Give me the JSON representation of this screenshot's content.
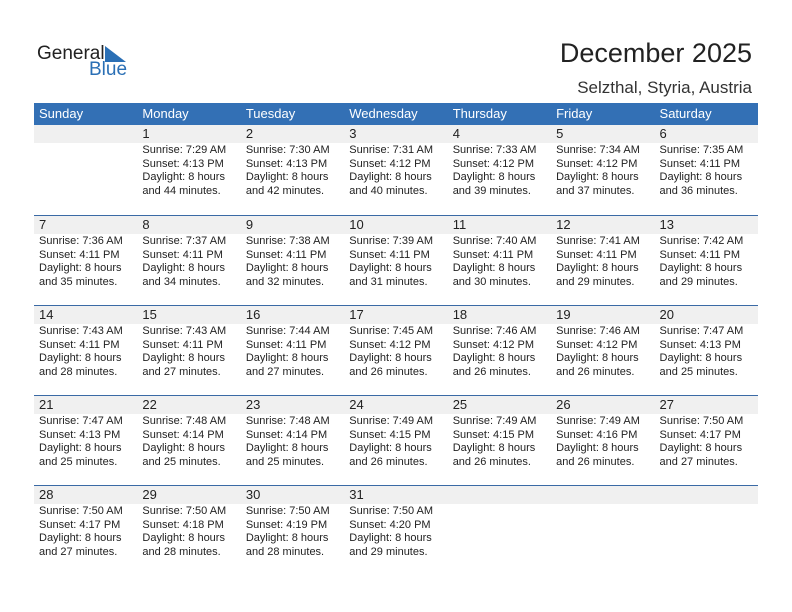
{
  "logo": {
    "line1": "General",
    "line2": "Blue"
  },
  "title": "December 2025",
  "location": "Selzthal, Styria, Austria",
  "colors": {
    "header": "#3370b5",
    "accent": "#2a6fb5"
  },
  "weekdays": [
    "Sunday",
    "Monday",
    "Tuesday",
    "Wednesday",
    "Thursday",
    "Friday",
    "Saturday"
  ],
  "weeks": [
    [
      null,
      {
        "day": "1",
        "sunrise": "Sunrise: 7:29 AM",
        "sunset": "Sunset: 4:13 PM",
        "daylight1": "Daylight: 8 hours",
        "daylight2": "and 44 minutes."
      },
      {
        "day": "2",
        "sunrise": "Sunrise: 7:30 AM",
        "sunset": "Sunset: 4:13 PM",
        "daylight1": "Daylight: 8 hours",
        "daylight2": "and 42 minutes."
      },
      {
        "day": "3",
        "sunrise": "Sunrise: 7:31 AM",
        "sunset": "Sunset: 4:12 PM",
        "daylight1": "Daylight: 8 hours",
        "daylight2": "and 40 minutes."
      },
      {
        "day": "4",
        "sunrise": "Sunrise: 7:33 AM",
        "sunset": "Sunset: 4:12 PM",
        "daylight1": "Daylight: 8 hours",
        "daylight2": "and 39 minutes."
      },
      {
        "day": "5",
        "sunrise": "Sunrise: 7:34 AM",
        "sunset": "Sunset: 4:12 PM",
        "daylight1": "Daylight: 8 hours",
        "daylight2": "and 37 minutes."
      },
      {
        "day": "6",
        "sunrise": "Sunrise: 7:35 AM",
        "sunset": "Sunset: 4:11 PM",
        "daylight1": "Daylight: 8 hours",
        "daylight2": "and 36 minutes."
      }
    ],
    [
      {
        "day": "7",
        "sunrise": "Sunrise: 7:36 AM",
        "sunset": "Sunset: 4:11 PM",
        "daylight1": "Daylight: 8 hours",
        "daylight2": "and 35 minutes."
      },
      {
        "day": "8",
        "sunrise": "Sunrise: 7:37 AM",
        "sunset": "Sunset: 4:11 PM",
        "daylight1": "Daylight: 8 hours",
        "daylight2": "and 34 minutes."
      },
      {
        "day": "9",
        "sunrise": "Sunrise: 7:38 AM",
        "sunset": "Sunset: 4:11 PM",
        "daylight1": "Daylight: 8 hours",
        "daylight2": "and 32 minutes."
      },
      {
        "day": "10",
        "sunrise": "Sunrise: 7:39 AM",
        "sunset": "Sunset: 4:11 PM",
        "daylight1": "Daylight: 8 hours",
        "daylight2": "and 31 minutes."
      },
      {
        "day": "11",
        "sunrise": "Sunrise: 7:40 AM",
        "sunset": "Sunset: 4:11 PM",
        "daylight1": "Daylight: 8 hours",
        "daylight2": "and 30 minutes."
      },
      {
        "day": "12",
        "sunrise": "Sunrise: 7:41 AM",
        "sunset": "Sunset: 4:11 PM",
        "daylight1": "Daylight: 8 hours",
        "daylight2": "and 29 minutes."
      },
      {
        "day": "13",
        "sunrise": "Sunrise: 7:42 AM",
        "sunset": "Sunset: 4:11 PM",
        "daylight1": "Daylight: 8 hours",
        "daylight2": "and 29 minutes."
      }
    ],
    [
      {
        "day": "14",
        "sunrise": "Sunrise: 7:43 AM",
        "sunset": "Sunset: 4:11 PM",
        "daylight1": "Daylight: 8 hours",
        "daylight2": "and 28 minutes."
      },
      {
        "day": "15",
        "sunrise": "Sunrise: 7:43 AM",
        "sunset": "Sunset: 4:11 PM",
        "daylight1": "Daylight: 8 hours",
        "daylight2": "and 27 minutes."
      },
      {
        "day": "16",
        "sunrise": "Sunrise: 7:44 AM",
        "sunset": "Sunset: 4:11 PM",
        "daylight1": "Daylight: 8 hours",
        "daylight2": "and 27 minutes."
      },
      {
        "day": "17",
        "sunrise": "Sunrise: 7:45 AM",
        "sunset": "Sunset: 4:12 PM",
        "daylight1": "Daylight: 8 hours",
        "daylight2": "and 26 minutes."
      },
      {
        "day": "18",
        "sunrise": "Sunrise: 7:46 AM",
        "sunset": "Sunset: 4:12 PM",
        "daylight1": "Daylight: 8 hours",
        "daylight2": "and 26 minutes."
      },
      {
        "day": "19",
        "sunrise": "Sunrise: 7:46 AM",
        "sunset": "Sunset: 4:12 PM",
        "daylight1": "Daylight: 8 hours",
        "daylight2": "and 26 minutes."
      },
      {
        "day": "20",
        "sunrise": "Sunrise: 7:47 AM",
        "sunset": "Sunset: 4:13 PM",
        "daylight1": "Daylight: 8 hours",
        "daylight2": "and 25 minutes."
      }
    ],
    [
      {
        "day": "21",
        "sunrise": "Sunrise: 7:47 AM",
        "sunset": "Sunset: 4:13 PM",
        "daylight1": "Daylight: 8 hours",
        "daylight2": "and 25 minutes."
      },
      {
        "day": "22",
        "sunrise": "Sunrise: 7:48 AM",
        "sunset": "Sunset: 4:14 PM",
        "daylight1": "Daylight: 8 hours",
        "daylight2": "and 25 minutes."
      },
      {
        "day": "23",
        "sunrise": "Sunrise: 7:48 AM",
        "sunset": "Sunset: 4:14 PM",
        "daylight1": "Daylight: 8 hours",
        "daylight2": "and 25 minutes."
      },
      {
        "day": "24",
        "sunrise": "Sunrise: 7:49 AM",
        "sunset": "Sunset: 4:15 PM",
        "daylight1": "Daylight: 8 hours",
        "daylight2": "and 26 minutes."
      },
      {
        "day": "25",
        "sunrise": "Sunrise: 7:49 AM",
        "sunset": "Sunset: 4:15 PM",
        "daylight1": "Daylight: 8 hours",
        "daylight2": "and 26 minutes."
      },
      {
        "day": "26",
        "sunrise": "Sunrise: 7:49 AM",
        "sunset": "Sunset: 4:16 PM",
        "daylight1": "Daylight: 8 hours",
        "daylight2": "and 26 minutes."
      },
      {
        "day": "27",
        "sunrise": "Sunrise: 7:50 AM",
        "sunset": "Sunset: 4:17 PM",
        "daylight1": "Daylight: 8 hours",
        "daylight2": "and 27 minutes."
      }
    ],
    [
      {
        "day": "28",
        "sunrise": "Sunrise: 7:50 AM",
        "sunset": "Sunset: 4:17 PM",
        "daylight1": "Daylight: 8 hours",
        "daylight2": "and 27 minutes."
      },
      {
        "day": "29",
        "sunrise": "Sunrise: 7:50 AM",
        "sunset": "Sunset: 4:18 PM",
        "daylight1": "Daylight: 8 hours",
        "daylight2": "and 28 minutes."
      },
      {
        "day": "30",
        "sunrise": "Sunrise: 7:50 AM",
        "sunset": "Sunset: 4:19 PM",
        "daylight1": "Daylight: 8 hours",
        "daylight2": "and 28 minutes."
      },
      {
        "day": "31",
        "sunrise": "Sunrise: 7:50 AM",
        "sunset": "Sunset: 4:20 PM",
        "daylight1": "Daylight: 8 hours",
        "daylight2": "and 29 minutes."
      },
      null,
      null,
      null
    ]
  ]
}
